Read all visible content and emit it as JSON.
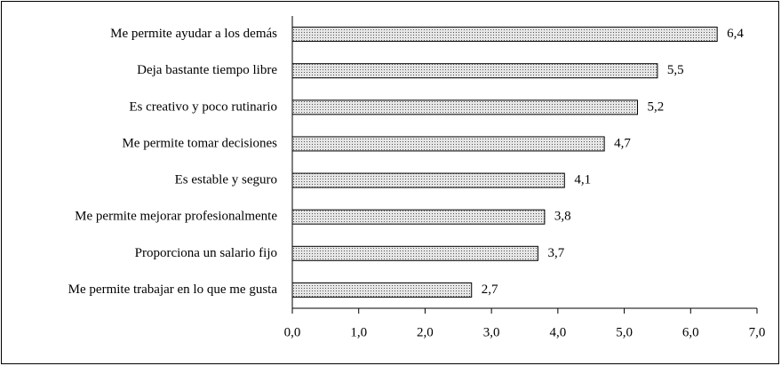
{
  "chart_data": {
    "type": "bar",
    "orientation": "horizontal",
    "categories": [
      "Me permite ayudar a los demás",
      "Deja bastante tiempo libre",
      "Es creativo y poco rutinario",
      "Me permite tomar decisiones",
      "Es estable y seguro",
      "Me permite mejorar profesionalmente",
      "Proporciona un salario fijo",
      "Me permite trabajar en lo que me gusta"
    ],
    "values": [
      6.4,
      5.5,
      5.2,
      4.7,
      4.1,
      3.8,
      3.7,
      2.7
    ],
    "value_labels": [
      "6,4",
      "5,5",
      "5,2",
      "4,7",
      "4,1",
      "3,8",
      "3,7",
      "2,7"
    ],
    "color": "#e6e6e6",
    "xlim": [
      0,
      7
    ],
    "xticks": [
      {
        "value": 0,
        "label": "0,0"
      },
      {
        "value": 1,
        "label": "1,0"
      },
      {
        "value": 2,
        "label": "2,0"
      },
      {
        "value": 3,
        "label": "3,0"
      },
      {
        "value": 4,
        "label": "4,0"
      },
      {
        "value": 5,
        "label": "5,0"
      },
      {
        "value": 6,
        "label": "6,0"
      },
      {
        "value": 7,
        "label": "7,0"
      }
    ],
    "grid": false
  }
}
